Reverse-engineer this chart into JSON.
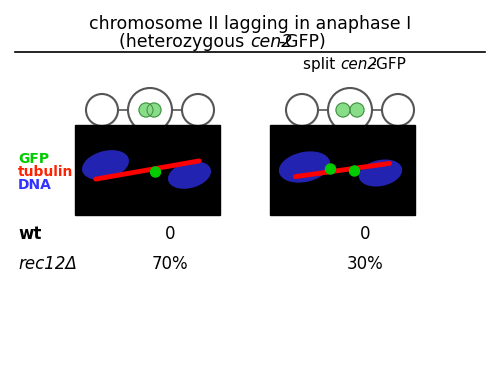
{
  "title_line1": "chromosome II lagging in anaphase I",
  "title_line2": "(heterozygous ",
  "title_cen2": "cen2",
  "title_end": "-GFP)",
  "split_label_prefix": "split ",
  "split_label_cen2": "cen2",
  "split_label_suffix": "-GFP",
  "wt_label": "wt",
  "rec12_label": "rec12Δ",
  "gfp_label": "GFP",
  "tubulin_label": "tubulin",
  "dna_label": "DNA",
  "wt_col1_val": "0",
  "wt_col2_val": "0",
  "rec12_col1_val": "70%",
  "rec12_col2_val": "30%",
  "bg_color": "#f0eeee",
  "gfp_color": "#00cc00",
  "tubulin_color": "#ff2200",
  "dna_color": "#3333ff",
  "circle_color": "#555555",
  "green_fill": "#88dd88"
}
